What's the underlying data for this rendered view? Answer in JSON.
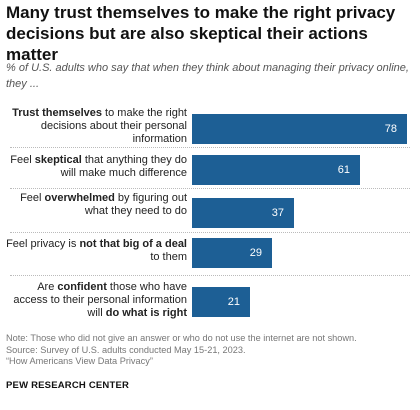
{
  "header": {
    "title": "Many trust themselves to make the right privacy decisions but are also skeptical their actions matter",
    "subtitle": "% of U.S. adults who say that when they think about managing their privacy online, they ..."
  },
  "chart_data": {
    "type": "bar",
    "orientation": "horizontal",
    "xlim": [
      0,
      100
    ],
    "bar_color": "#1d5f95",
    "categories": [
      "Trust themselves to make the right decisions about their personal information",
      "Feel skeptical that anything they do will make much difference",
      "Feel overwhelmed by figuring out what they need to do",
      "Feel privacy is not that big of a deal to them",
      "Are confident those who have access to their personal information will do what is right"
    ],
    "values": [
      78,
      61,
      37,
      29,
      21
    ],
    "label_parts": [
      [
        {
          "t": "Trust themselves",
          "b": true
        },
        {
          "t": " to make the right decisions about their personal information",
          "b": false
        }
      ],
      [
        {
          "t": "Feel ",
          "b": false
        },
        {
          "t": "skeptical",
          "b": true
        },
        {
          "t": " that anything they do will make much difference",
          "b": false
        }
      ],
      [
        {
          "t": "Feel ",
          "b": false
        },
        {
          "t": "overwhelmed",
          "b": true
        },
        {
          "t": " by figuring out what they need to do",
          "b": false
        }
      ],
      [
        {
          "t": "Feel privacy is ",
          "b": false
        },
        {
          "t": "not that big of a deal",
          "b": true
        },
        {
          "t": " to them",
          "b": false
        }
      ],
      [
        {
          "t": "Are ",
          "b": false
        },
        {
          "t": "confident",
          "b": true
        },
        {
          "t": " those who have access to their personal information will ",
          "b": false
        },
        {
          "t": "do what is right",
          "b": true
        }
      ]
    ]
  },
  "footer": {
    "note": "Note: Those who did not give an answer or who do not use the internet are not shown.",
    "source": "Source: Survey of U.S. adults conducted May 15-21, 2023.",
    "report": "“How Americans View Data Privacy”",
    "logo": "PEW RESEARCH CENTER"
  }
}
